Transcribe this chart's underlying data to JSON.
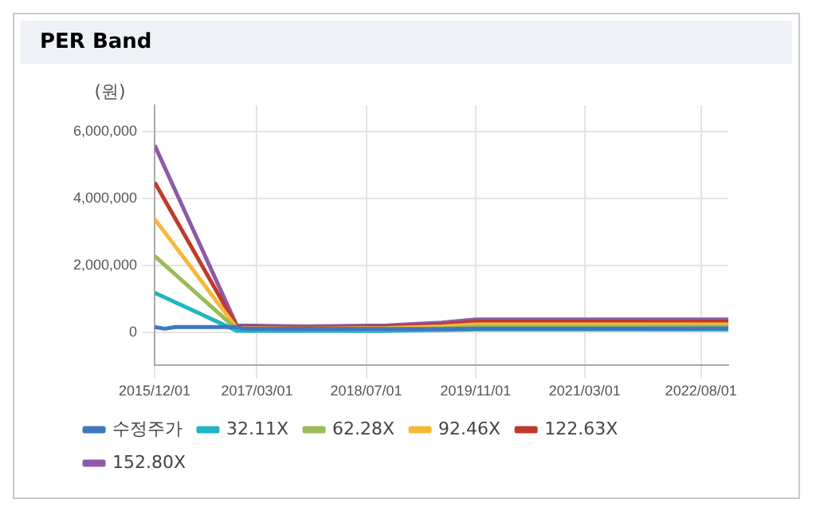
{
  "chart_data": {
    "type": "line",
    "title": "PER Band",
    "ylabel": "(원)",
    "xlim": [
      "2015-12-01",
      "2022-12-01"
    ],
    "xticks": [
      {
        "value": "2015-12-01",
        "label": "2015/12/01"
      },
      {
        "value": "2017-03-01",
        "label": "2017/03/01"
      },
      {
        "value": "2018-07-01",
        "label": "2018/07/01"
      },
      {
        "value": "2019-11-01",
        "label": "2019/11/01"
      },
      {
        "value": "2021-03-01",
        "label": "2021/03/01"
      },
      {
        "value": "2022-08-01",
        "label": "2022/08/01"
      }
    ],
    "ylim": [
      -1000000,
      6800000
    ],
    "yticks": [
      {
        "value": 0,
        "label": "0"
      },
      {
        "value": 2000000,
        "label": "2,000,000"
      },
      {
        "value": 4000000,
        "label": "4,000,000"
      },
      {
        "value": 6000000,
        "label": "6,000,000"
      }
    ],
    "grid": true,
    "legend": "bottom",
    "marker": "none",
    "line_style": "solid",
    "series": [
      {
        "name": "수정주가",
        "color": "#3f78c0",
        "x": [
          "2015-12-01",
          "2016-01-15",
          "2016-03-01",
          "2016-12-01",
          "2017-01-01",
          "2019-06-01",
          "2019-11-01",
          "2022-12-01"
        ],
        "values": [
          150000,
          100000,
          150000,
          150000,
          100000,
          90000,
          100000,
          110000
        ]
      },
      {
        "name": "32.11X",
        "color": "#22b5c4",
        "x": [
          "2015-12-01",
          "2016-12-01",
          "2017-10-01",
          "2018-10-01",
          "2019-06-01",
          "2019-11-01",
          "2022-12-01"
        ],
        "values": [
          1180000,
          40000,
          40000,
          40000,
          60000,
          80000,
          80000
        ]
      },
      {
        "name": "62.28X",
        "color": "#9bbb59",
        "x": [
          "2015-12-01",
          "2016-12-01",
          "2017-10-01",
          "2018-10-01",
          "2019-06-01",
          "2019-11-01",
          "2022-12-01"
        ],
        "values": [
          2280000,
          80000,
          70000,
          80000,
          110000,
          160000,
          160000
        ]
      },
      {
        "name": "92.46X",
        "color": "#f5b93a",
        "x": [
          "2015-12-01",
          "2016-12-01",
          "2017-10-01",
          "2018-10-01",
          "2019-06-01",
          "2019-11-01",
          "2022-12-01"
        ],
        "values": [
          3390000,
          120000,
          100000,
          120000,
          170000,
          230000,
          230000
        ]
      },
      {
        "name": "122.63X",
        "color": "#c0392b",
        "x": [
          "2015-12-01",
          "2016-12-01",
          "2017-10-01",
          "2018-10-01",
          "2019-06-01",
          "2019-11-01",
          "2022-12-01"
        ],
        "values": [
          4490000,
          160000,
          130000,
          160000,
          220000,
          310000,
          310000
        ]
      },
      {
        "name": "152.80X",
        "color": "#8e5aa8",
        "x": [
          "2015-12-01",
          "2016-12-01",
          "2017-10-01",
          "2018-10-01",
          "2019-06-01",
          "2019-11-01",
          "2022-12-01"
        ],
        "values": [
          5600000,
          200000,
          170000,
          200000,
          280000,
          380000,
          380000
        ]
      }
    ]
  }
}
